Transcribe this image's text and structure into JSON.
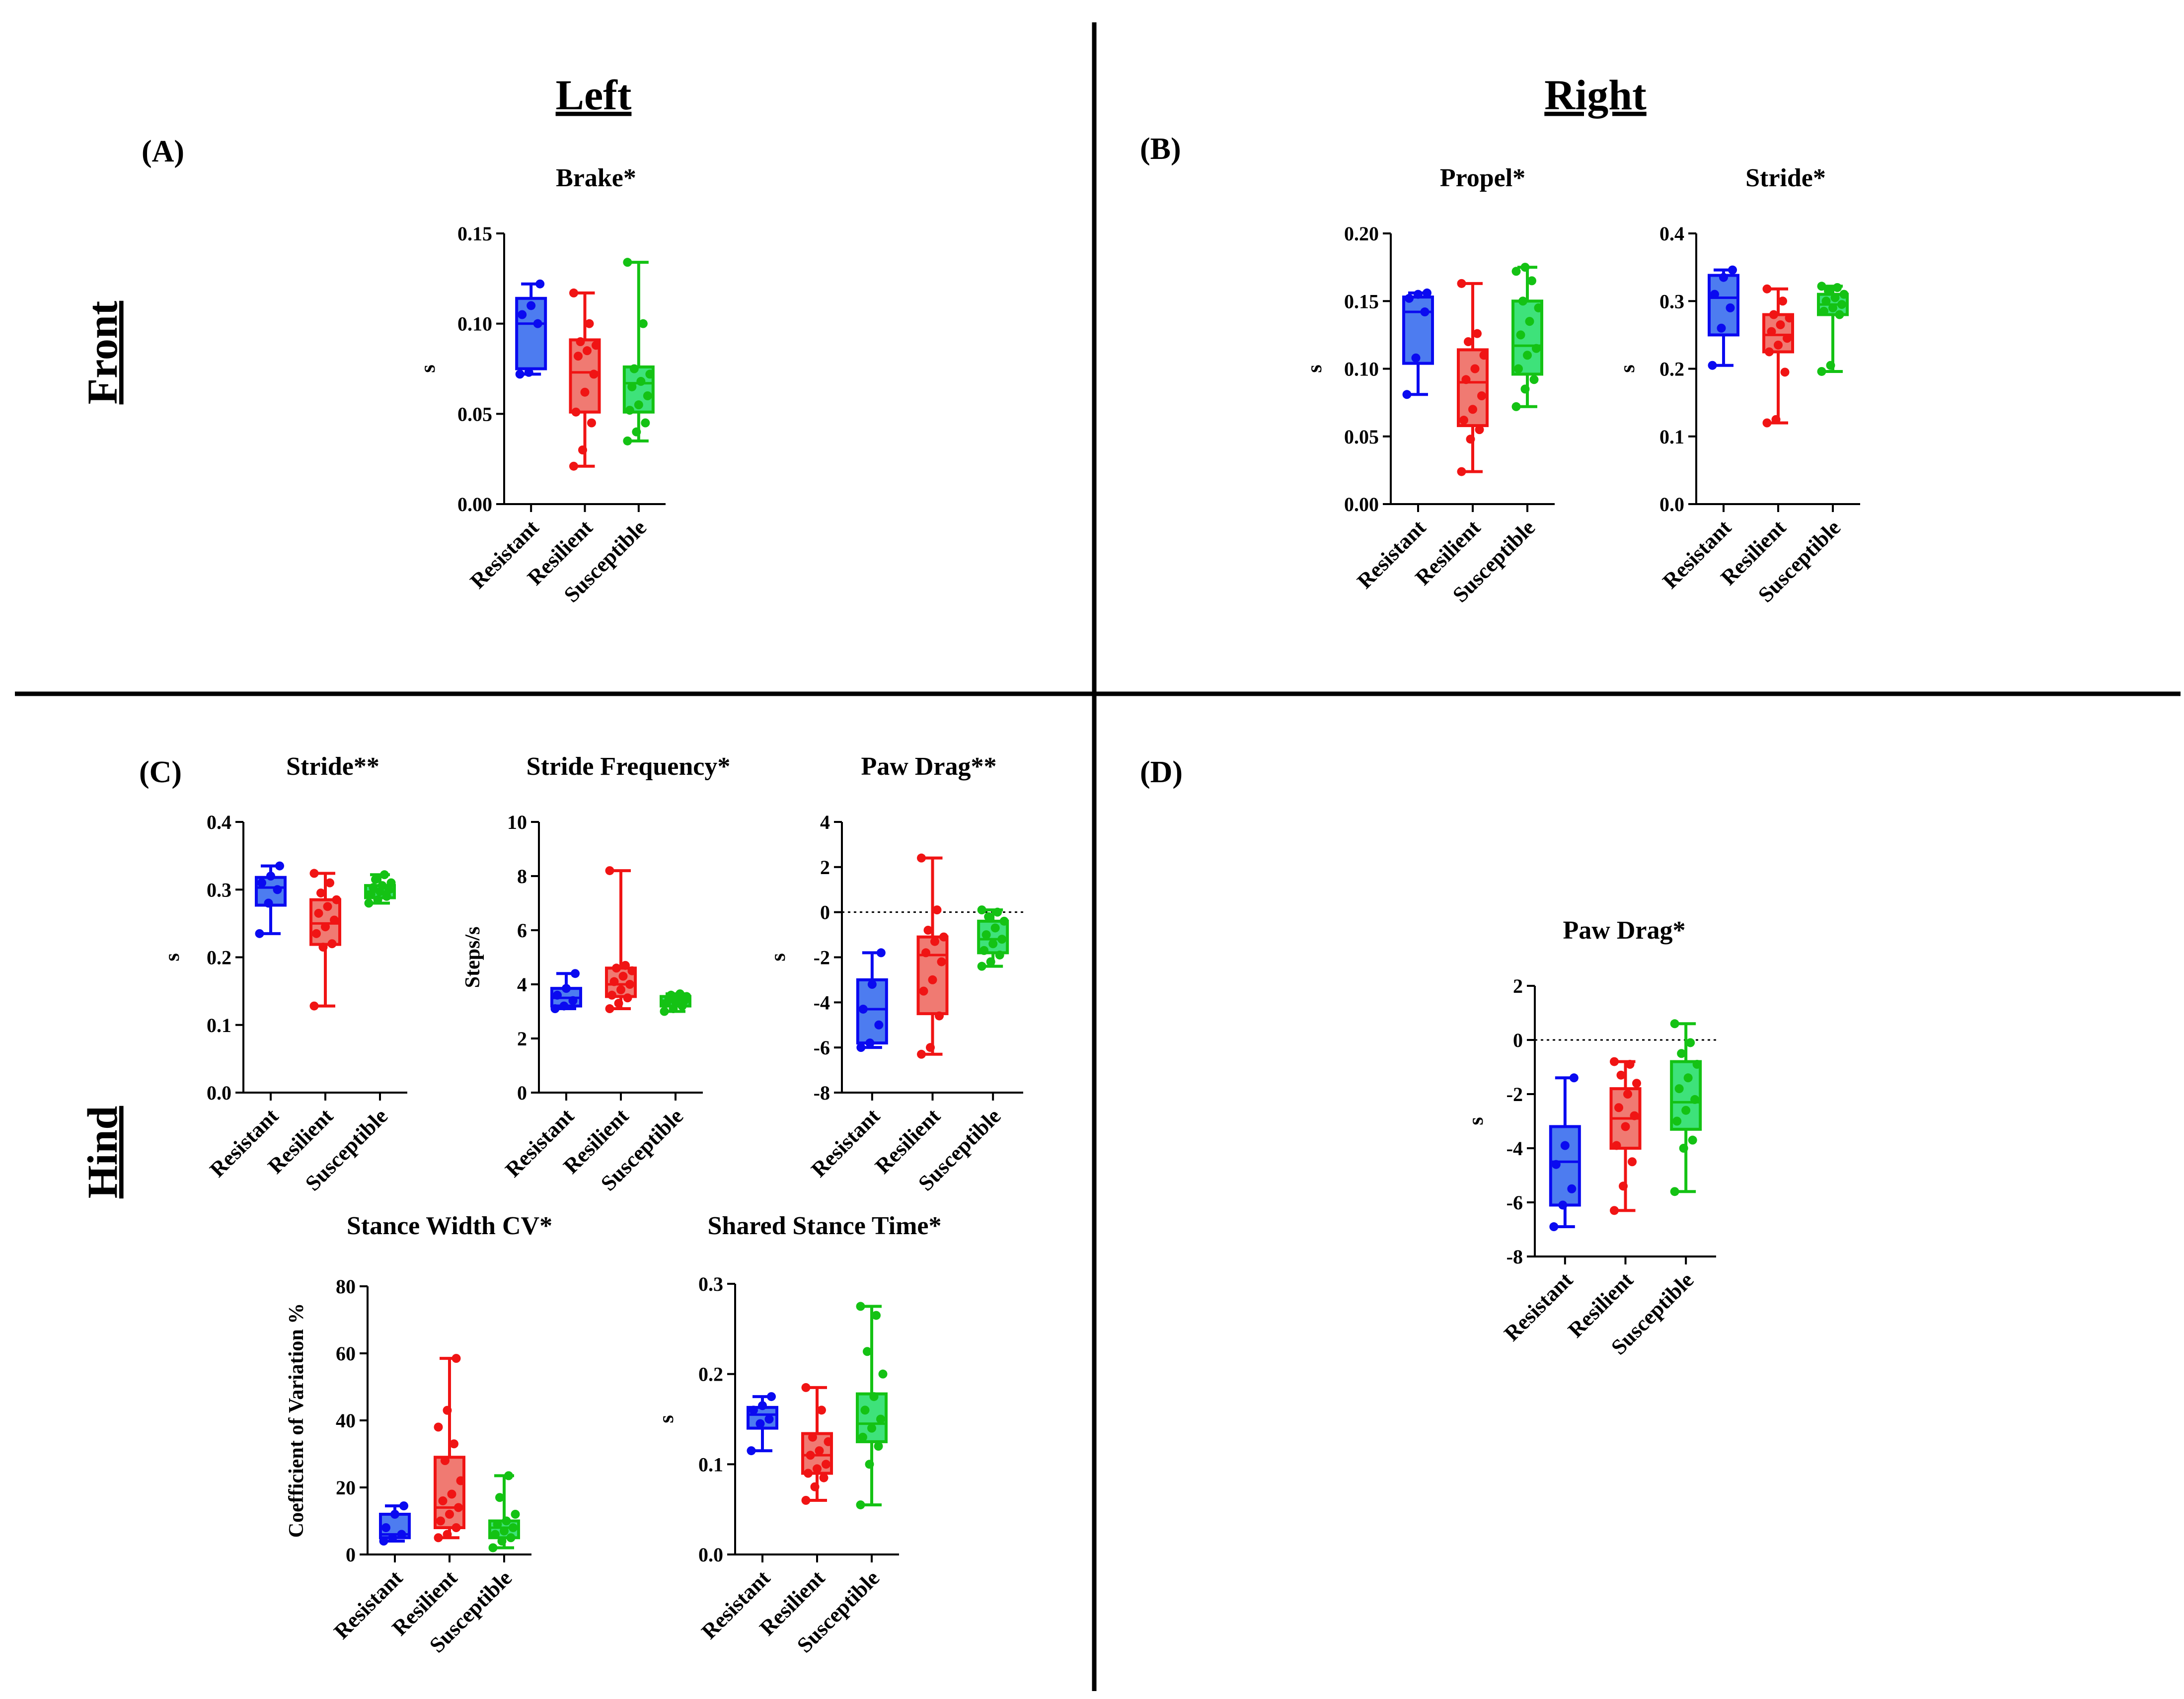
{
  "headers": {
    "left": "Left",
    "right": "Right",
    "front": "Front",
    "hind": "Hind"
  },
  "panels": {
    "a": "(A)",
    "b": "(B)",
    "c": "(C)",
    "d": "(D)"
  },
  "colors": {
    "Resistant": {
      "stroke": "#0a0af0",
      "fill": "#4d7cf0"
    },
    "Resilient": {
      "stroke": "#f01414",
      "fill": "#f07a72"
    },
    "Susceptible": {
      "stroke": "#14c214",
      "fill": "#3ee27a"
    }
  },
  "chart_data": [
    {
      "id": "brake",
      "type": "box",
      "title": "Brake*",
      "ylabel": "s",
      "ylim": [
        0,
        0.15
      ],
      "yticks": [
        "0.00",
        "0.05",
        "0.10",
        "0.15"
      ],
      "categories": [
        "Resistant",
        "Resilient",
        "Susceptible"
      ],
      "series": [
        {
          "name": "Resistant",
          "min": 0.072,
          "q1": 0.075,
          "median": 0.1,
          "q3": 0.114,
          "max": 0.122,
          "points": [
            0.072,
            0.073,
            0.1,
            0.105,
            0.11,
            0.122
          ]
        },
        {
          "name": "Resilient",
          "min": 0.021,
          "q1": 0.051,
          "median": 0.073,
          "q3": 0.091,
          "max": 0.117,
          "points": [
            0.021,
            0.03,
            0.045,
            0.051,
            0.062,
            0.072,
            0.082,
            0.085,
            0.088,
            0.09,
            0.1,
            0.117
          ]
        },
        {
          "name": "Susceptible",
          "min": 0.035,
          "q1": 0.051,
          "median": 0.067,
          "q3": 0.076,
          "max": 0.134,
          "points": [
            0.035,
            0.04,
            0.045,
            0.052,
            0.055,
            0.06,
            0.065,
            0.068,
            0.072,
            0.075,
            0.1,
            0.134
          ]
        }
      ]
    },
    {
      "id": "propel",
      "type": "box",
      "title": "Propel*",
      "ylabel": "s",
      "ylim": [
        0,
        0.2
      ],
      "yticks": [
        "0.00",
        "0.05",
        "0.10",
        "0.15",
        "0.20"
      ],
      "categories": [
        "Resistant",
        "Resilient",
        "Susceptible"
      ],
      "series": [
        {
          "name": "Resistant",
          "min": 0.081,
          "q1": 0.104,
          "median": 0.142,
          "q3": 0.153,
          "max": 0.156,
          "points": [
            0.081,
            0.108,
            0.142,
            0.152,
            0.155,
            0.156
          ]
        },
        {
          "name": "Resilient",
          "min": 0.024,
          "q1": 0.058,
          "median": 0.09,
          "q3": 0.114,
          "max": 0.163,
          "points": [
            0.024,
            0.048,
            0.055,
            0.062,
            0.07,
            0.08,
            0.092,
            0.1,
            0.11,
            0.12,
            0.126,
            0.163
          ]
        },
        {
          "name": "Susceptible",
          "min": 0.072,
          "q1": 0.096,
          "median": 0.117,
          "q3": 0.15,
          "max": 0.175,
          "points": [
            0.072,
            0.085,
            0.092,
            0.1,
            0.11,
            0.115,
            0.125,
            0.135,
            0.145,
            0.15,
            0.165,
            0.172,
            0.175
          ]
        }
      ]
    },
    {
      "id": "stride_rf",
      "type": "box",
      "title": "Stride*",
      "ylabel": "s",
      "ylim": [
        0,
        0.4
      ],
      "yticks": [
        "0.0",
        "0.1",
        "0.2",
        "0.3",
        "0.4"
      ],
      "categories": [
        "Resistant",
        "Resilient",
        "Susceptible"
      ],
      "series": [
        {
          "name": "Resistant",
          "min": 0.205,
          "q1": 0.25,
          "median": 0.305,
          "q3": 0.338,
          "max": 0.346,
          "points": [
            0.205,
            0.26,
            0.29,
            0.31,
            0.335,
            0.346
          ]
        },
        {
          "name": "Resilient",
          "min": 0.12,
          "q1": 0.225,
          "median": 0.25,
          "q3": 0.28,
          "max": 0.318,
          "points": [
            0.12,
            0.125,
            0.195,
            0.225,
            0.235,
            0.245,
            0.255,
            0.265,
            0.275,
            0.28,
            0.3,
            0.318
          ]
        },
        {
          "name": "Susceptible",
          "min": 0.196,
          "q1": 0.28,
          "median": 0.295,
          "q3": 0.31,
          "max": 0.322,
          "points": [
            0.196,
            0.205,
            0.28,
            0.285,
            0.29,
            0.295,
            0.3,
            0.305,
            0.31,
            0.315,
            0.32,
            0.322
          ]
        }
      ]
    },
    {
      "id": "stride_lh",
      "type": "box",
      "title": "Stride**",
      "ylabel": "s",
      "ylim": [
        0,
        0.4
      ],
      "yticks": [
        "0.0",
        "0.1",
        "0.2",
        "0.3",
        "0.4"
      ],
      "categories": [
        "Resistant",
        "Resilient",
        "Susceptible"
      ],
      "series": [
        {
          "name": "Resistant",
          "min": 0.235,
          "q1": 0.277,
          "median": 0.303,
          "q3": 0.318,
          "max": 0.335,
          "points": [
            0.235,
            0.28,
            0.3,
            0.31,
            0.32,
            0.335
          ]
        },
        {
          "name": "Resilient",
          "min": 0.128,
          "q1": 0.219,
          "median": 0.25,
          "q3": 0.285,
          "max": 0.324,
          "points": [
            0.128,
            0.215,
            0.22,
            0.235,
            0.245,
            0.255,
            0.265,
            0.275,
            0.285,
            0.295,
            0.31,
            0.324
          ]
        },
        {
          "name": "Susceptible",
          "min": 0.28,
          "q1": 0.288,
          "median": 0.297,
          "q3": 0.306,
          "max": 0.322,
          "points": [
            0.28,
            0.285,
            0.29,
            0.293,
            0.297,
            0.3,
            0.303,
            0.306,
            0.31,
            0.315,
            0.322
          ]
        }
      ]
    },
    {
      "id": "stride_freq",
      "type": "box",
      "title": "Stride Frequency*",
      "ylabel": "Steps/s",
      "ylim": [
        0,
        10
      ],
      "yticks": [
        "0",
        "2",
        "4",
        "6",
        "8",
        "10"
      ],
      "categories": [
        "Resistant",
        "Resilient",
        "Susceptible"
      ],
      "series": [
        {
          "name": "Resistant",
          "min": 3.1,
          "q1": 3.2,
          "median": 3.5,
          "q3": 3.85,
          "max": 4.4,
          "points": [
            3.1,
            3.2,
            3.4,
            3.6,
            3.85,
            4.4
          ]
        },
        {
          "name": "Resilient",
          "min": 3.1,
          "q1": 3.55,
          "median": 4.0,
          "q3": 4.6,
          "max": 8.2,
          "points": [
            3.1,
            3.3,
            3.5,
            3.6,
            3.8,
            4.0,
            4.1,
            4.3,
            4.5,
            4.6,
            4.7,
            8.2
          ]
        },
        {
          "name": "Susceptible",
          "min": 3.0,
          "q1": 3.2,
          "median": 3.4,
          "q3": 3.55,
          "max": 3.65,
          "points": [
            3.0,
            3.1,
            3.2,
            3.3,
            3.35,
            3.4,
            3.45,
            3.5,
            3.55,
            3.6,
            3.65
          ]
        }
      ]
    },
    {
      "id": "paw_drag_lh",
      "type": "box",
      "title": "Paw Drag**",
      "ylabel": "s",
      "ylim": [
        -8,
        4
      ],
      "yticks": [
        "-8",
        "-6",
        "-4",
        "-2",
        "0",
        "2",
        "4"
      ],
      "refline": 0,
      "categories": [
        "Resistant",
        "Resilient",
        "Susceptible"
      ],
      "series": [
        {
          "name": "Resistant",
          "min": -6.0,
          "q1": -5.8,
          "median": -4.3,
          "q3": -3.0,
          "max": -1.8,
          "points": [
            -6.0,
            -5.8,
            -5.0,
            -4.3,
            -3.2,
            -1.8
          ]
        },
        {
          "name": "Resilient",
          "min": -6.3,
          "q1": -4.5,
          "median": -1.9,
          "q3": -1.1,
          "max": 2.4,
          "points": [
            -6.3,
            -6.0,
            -4.6,
            -3.5,
            -3.0,
            -2.2,
            -1.8,
            -1.3,
            -1.1,
            -0.8,
            0.1,
            2.4
          ]
        },
        {
          "name": "Susceptible",
          "min": -2.4,
          "q1": -1.8,
          "median": -1.2,
          "q3": -0.4,
          "max": 0.1,
          "points": [
            -2.4,
            -2.2,
            -1.9,
            -1.7,
            -1.4,
            -1.2,
            -1.0,
            -0.7,
            -0.4,
            -0.2,
            0.0,
            0.1
          ]
        }
      ]
    },
    {
      "id": "stance_cv",
      "type": "box",
      "title": "Stance Width CV*",
      "ylabel": "Coefficient of Variation %",
      "ylim": [
        0,
        80
      ],
      "yticks": [
        "0",
        "20",
        "40",
        "60",
        "80"
      ],
      "categories": [
        "Resistant",
        "Resilient",
        "Susceptible"
      ],
      "series": [
        {
          "name": "Resistant",
          "min": 4,
          "q1": 5,
          "median": 6,
          "q3": 12,
          "max": 14.5,
          "points": [
            4,
            5,
            6,
            8,
            12,
            14.5
          ]
        },
        {
          "name": "Resilient",
          "min": 5,
          "q1": 8,
          "median": 14,
          "q3": 29,
          "max": 58.5,
          "points": [
            5,
            6,
            8,
            10,
            12,
            14,
            16,
            18,
            22,
            28,
            33,
            38,
            43,
            58.5
          ]
        },
        {
          "name": "Susceptible",
          "min": 2,
          "q1": 5,
          "median": 8,
          "q3": 10,
          "max": 23.5,
          "points": [
            2,
            4,
            5,
            6,
            7,
            8,
            9,
            10,
            12,
            17,
            23.5
          ]
        }
      ]
    },
    {
      "id": "shared_stance",
      "type": "box",
      "title": "Shared Stance Time*",
      "ylabel": "s",
      "ylim": [
        0,
        0.3
      ],
      "yticks": [
        "0.0",
        "0.1",
        "0.2",
        "0.3"
      ],
      "categories": [
        "Resistant",
        "Resilient",
        "Susceptible"
      ],
      "series": [
        {
          "name": "Resistant",
          "min": 0.115,
          "q1": 0.14,
          "median": 0.155,
          "q3": 0.163,
          "max": 0.175,
          "points": [
            0.115,
            0.145,
            0.15,
            0.16,
            0.165,
            0.175
          ]
        },
        {
          "name": "Resilient",
          "min": 0.06,
          "q1": 0.09,
          "median": 0.11,
          "q3": 0.134,
          "max": 0.185,
          "points": [
            0.06,
            0.075,
            0.085,
            0.09,
            0.095,
            0.1,
            0.11,
            0.115,
            0.125,
            0.13,
            0.16,
            0.185
          ]
        },
        {
          "name": "Susceptible",
          "min": 0.055,
          "q1": 0.125,
          "median": 0.145,
          "q3": 0.178,
          "max": 0.275,
          "points": [
            0.055,
            0.1,
            0.12,
            0.13,
            0.14,
            0.15,
            0.16,
            0.175,
            0.2,
            0.225,
            0.265,
            0.275
          ]
        }
      ]
    },
    {
      "id": "paw_drag_rh",
      "type": "box",
      "title": "Paw Drag*",
      "ylabel": "s",
      "ylim": [
        -8,
        2
      ],
      "yticks": [
        "-8",
        "-6",
        "-4",
        "-2",
        "0",
        "2"
      ],
      "refline": 0,
      "categories": [
        "Resistant",
        "Resilient",
        "Susceptible"
      ],
      "series": [
        {
          "name": "Resistant",
          "min": -6.9,
          "q1": -6.1,
          "median": -4.5,
          "q3": -3.2,
          "max": -1.4,
          "points": [
            -6.9,
            -6.1,
            -5.5,
            -4.6,
            -3.9,
            -1.4
          ]
        },
        {
          "name": "Resilient",
          "min": -6.3,
          "q1": -4.0,
          "median": -2.9,
          "q3": -1.8,
          "max": -0.8,
          "points": [
            -6.3,
            -5.4,
            -4.5,
            -3.9,
            -3.2,
            -2.8,
            -2.5,
            -2.0,
            -1.6,
            -1.3,
            -0.9,
            -0.8
          ]
        },
        {
          "name": "Susceptible",
          "min": -5.6,
          "q1": -3.3,
          "median": -2.3,
          "q3": -0.8,
          "max": 0.6,
          "points": [
            -5.6,
            -4.0,
            -3.7,
            -3.0,
            -2.6,
            -2.2,
            -1.8,
            -1.4,
            -0.9,
            -0.5,
            -0.1,
            0.6
          ]
        }
      ]
    }
  ]
}
